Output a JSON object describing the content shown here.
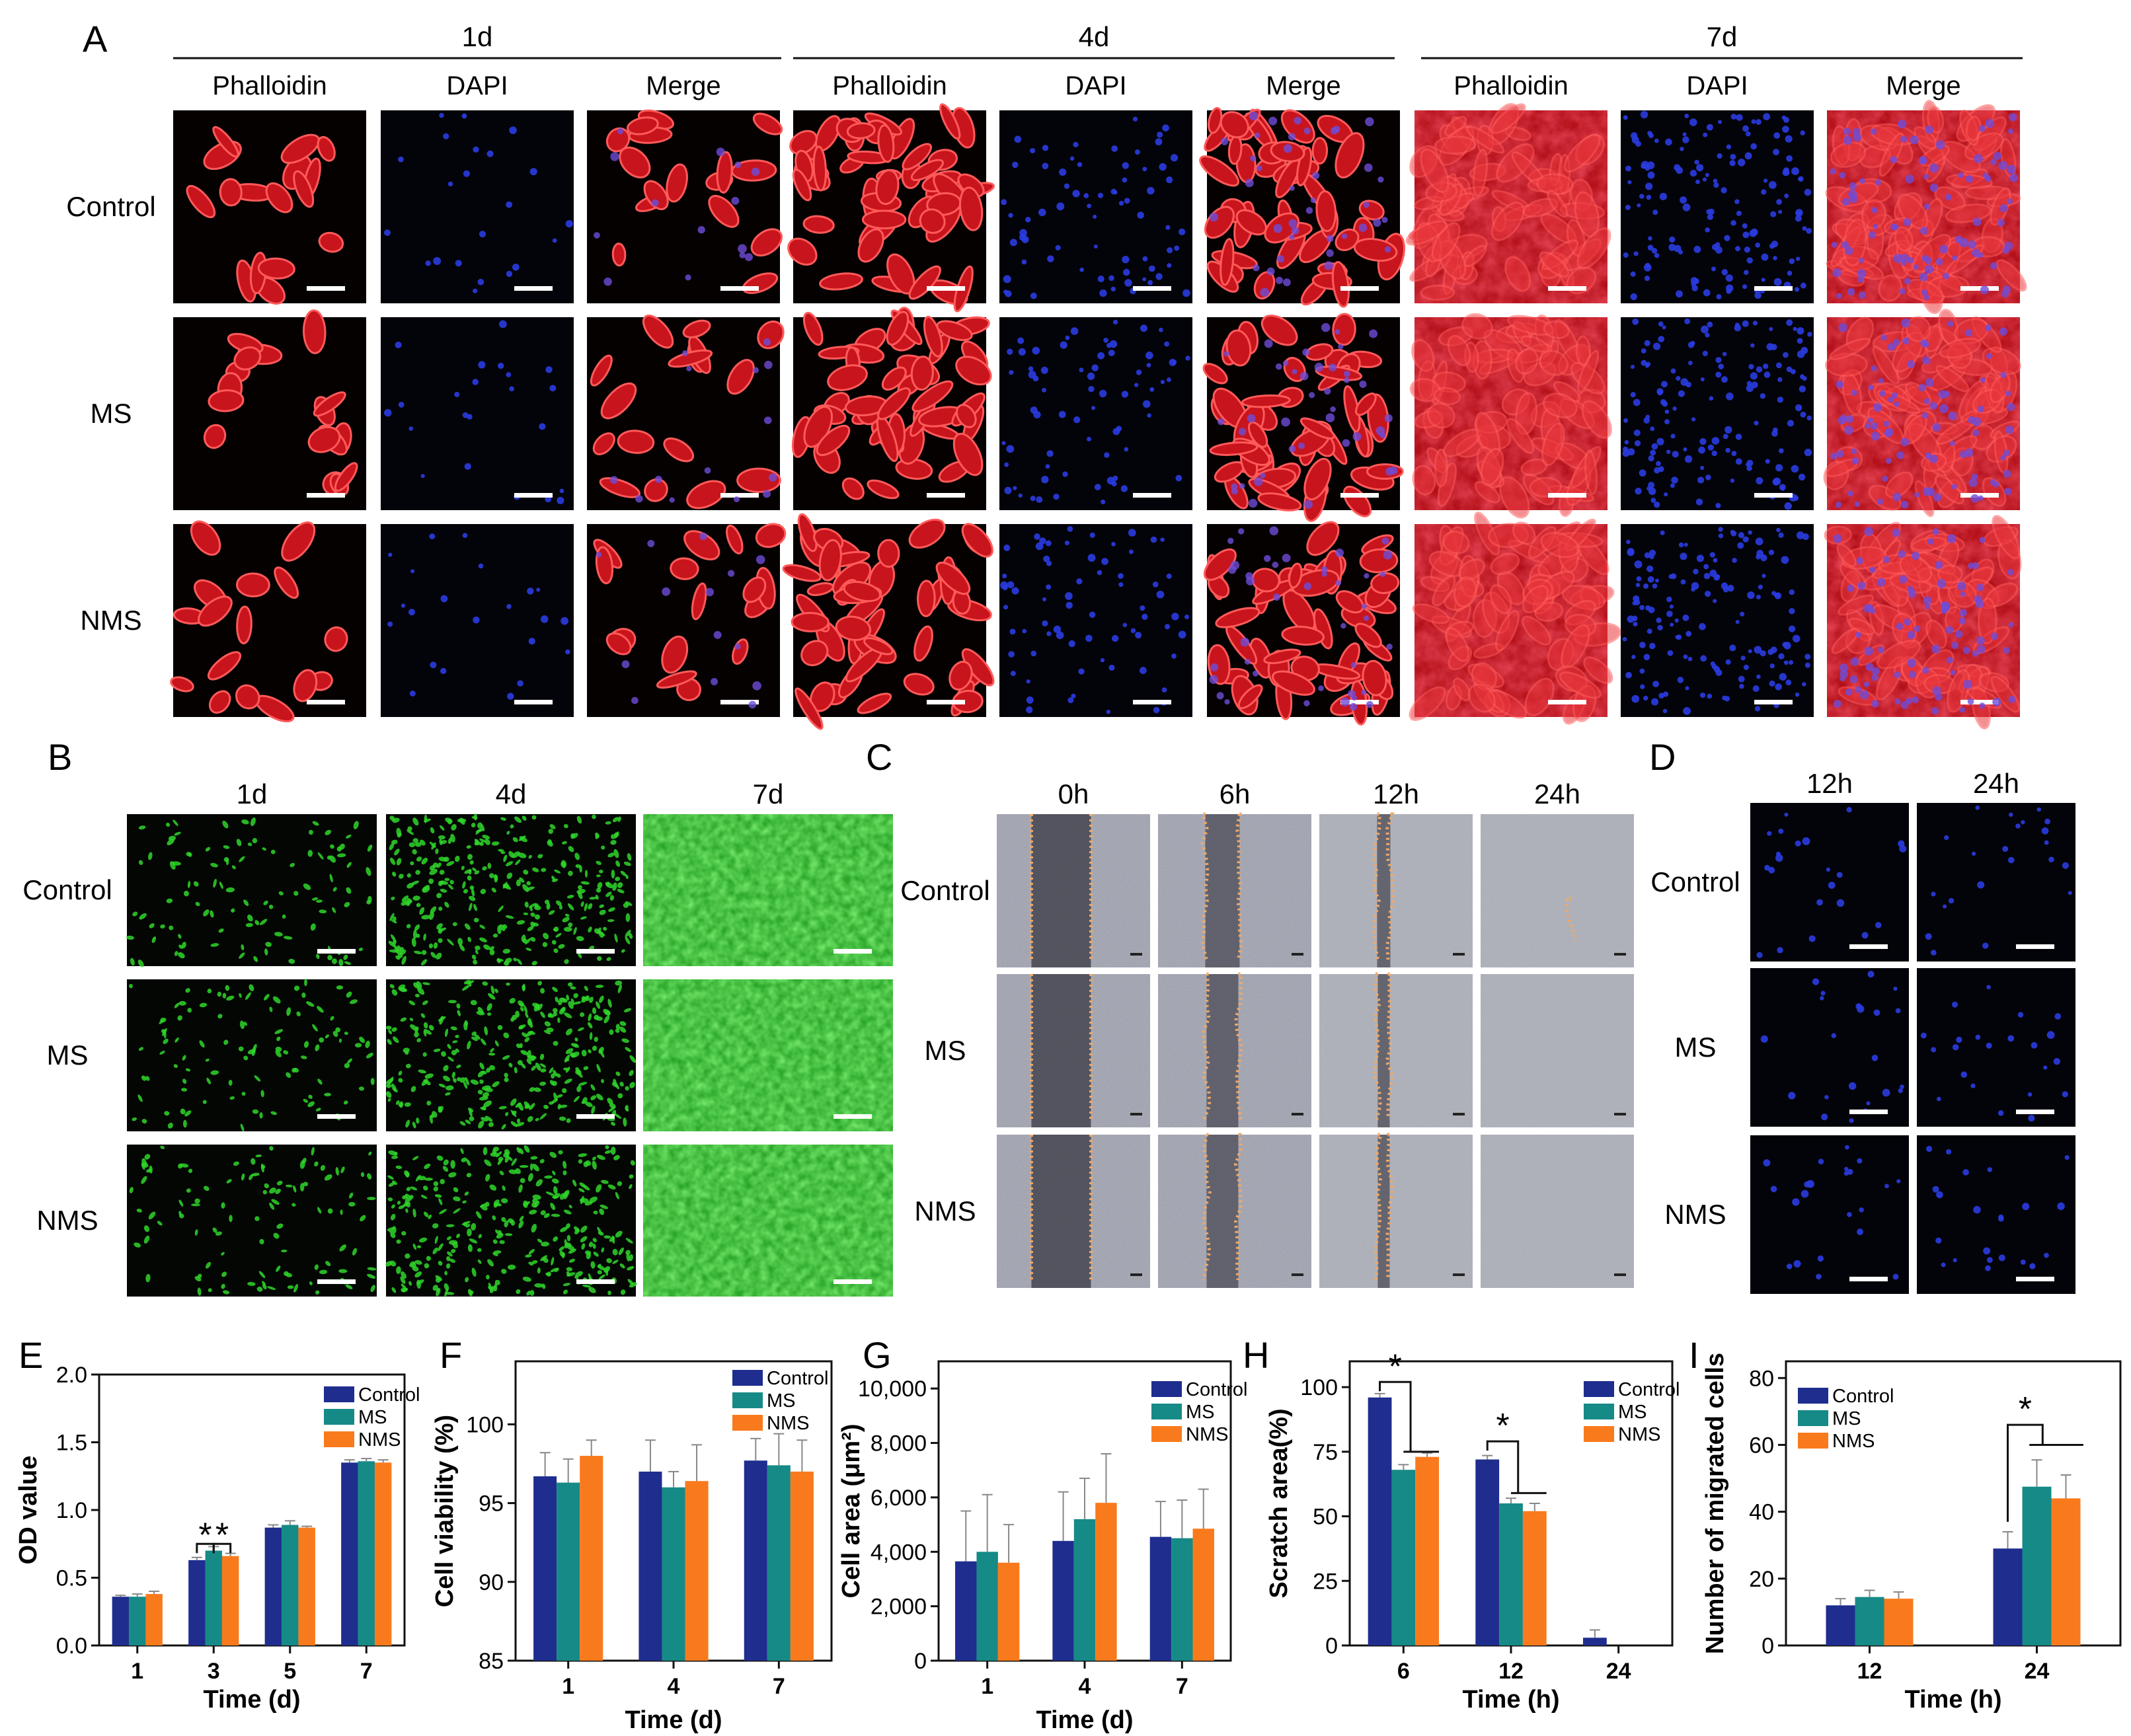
{
  "panel_a": {
    "letter": "A",
    "days": [
      "1d",
      "4d",
      "7d"
    ],
    "stains": [
      "Phalloidin",
      "DAPI",
      "Merge"
    ],
    "groups": [
      "Control",
      "MS",
      "NMS"
    ]
  },
  "panel_b": {
    "letter": "B",
    "days": [
      "1d",
      "4d",
      "7d"
    ],
    "groups": [
      "Control",
      "MS",
      "NMS"
    ]
  },
  "panel_c": {
    "letter": "C",
    "times": [
      "0h",
      "6h",
      "12h",
      "24h"
    ],
    "groups": [
      "Control",
      "MS",
      "NMS"
    ]
  },
  "panel_d": {
    "letter": "D",
    "times": [
      "12h",
      "24h"
    ],
    "groups": [
      "Control",
      "MS",
      "NMS"
    ]
  },
  "colors": {
    "Control": "#1f2d8f",
    "MS": "#168a86",
    "NMS": "#f97a1c",
    "phalloidin": "#d8141c",
    "dapi": "#2a3ce0",
    "live": "#2fd62a",
    "scratch_edge": "#f0a868"
  },
  "chart_data": [
    {
      "id": "E",
      "letter": "E",
      "type": "bar",
      "xlabel": "Time (d)",
      "ylabel": "OD value",
      "categories": [
        "1",
        "3",
        "5",
        "7"
      ],
      "ylim": [
        0,
        2.0
      ],
      "yticks": [
        "0.0",
        "0.5",
        "1.0",
        "1.5",
        "2.0"
      ],
      "legend_position": "top-right",
      "series": [
        {
          "name": "Control",
          "values": [
            0.36,
            0.63,
            0.87,
            1.35
          ],
          "errors": [
            0.01,
            0.02,
            0.02,
            0.02
          ]
        },
        {
          "name": "MS",
          "values": [
            0.36,
            0.7,
            0.89,
            1.36
          ],
          "errors": [
            0.02,
            0.03,
            0.03,
            0.02
          ]
        },
        {
          "name": "NMS",
          "values": [
            0.38,
            0.66,
            0.87,
            1.35
          ],
          "errors": [
            0.02,
            0.02,
            0.01,
            0.02
          ]
        }
      ],
      "annotations": [
        "*",
        "*"
      ]
    },
    {
      "id": "F",
      "letter": "F",
      "type": "bar",
      "xlabel": "Time (d)",
      "ylabel": "Cell viability (%)",
      "categories": [
        "1",
        "4",
        "7"
      ],
      "ylim": [
        85,
        104
      ],
      "yticks": [
        "85",
        "90",
        "95",
        "100"
      ],
      "legend_position": "top-right",
      "series": [
        {
          "name": "Control",
          "values": [
            96.7,
            97.0,
            97.7
          ],
          "errors": [
            1.5,
            2.0,
            1.4
          ]
        },
        {
          "name": "MS",
          "values": [
            96.3,
            96.0,
            97.4
          ],
          "errors": [
            1.5,
            1.0,
            2.0
          ]
        },
        {
          "name": "NMS",
          "values": [
            98.0,
            96.4,
            97.0
          ],
          "errors": [
            1.0,
            2.3,
            2.0
          ]
        }
      ]
    },
    {
      "id": "G",
      "letter": "G",
      "type": "bar",
      "xlabel": "Time (d)",
      "ylabel": "Cell area (μm²)",
      "categories": [
        "1",
        "4",
        "7"
      ],
      "ylim": [
        0,
        11000
      ],
      "yticks": [
        "0",
        "2,000",
        "4,000",
        "6,000",
        "8,000",
        "10,000"
      ],
      "legend_position": "top-right",
      "series": [
        {
          "name": "Control",
          "values": [
            3650,
            4400,
            4550
          ],
          "errors": [
            1850,
            1800,
            1300
          ]
        },
        {
          "name": "MS",
          "values": [
            4000,
            5200,
            4500
          ],
          "errors": [
            2100,
            1500,
            1400
          ]
        },
        {
          "name": "NMS",
          "values": [
            3600,
            5800,
            4850
          ],
          "errors": [
            1400,
            1800,
            1450
          ]
        }
      ]
    },
    {
      "id": "H",
      "letter": "H",
      "type": "bar",
      "xlabel": "Time (h)",
      "ylabel": "Scratch area(%)",
      "categories": [
        "6",
        "12",
        "24"
      ],
      "ylim": [
        0,
        110
      ],
      "yticks": [
        "0",
        "25",
        "50",
        "75",
        "100"
      ],
      "legend_position": "top-right",
      "series": [
        {
          "name": "Control",
          "values": [
            96,
            72,
            3
          ],
          "errors": [
            1.5,
            1.5,
            3
          ]
        },
        {
          "name": "MS",
          "values": [
            68,
            55,
            0
          ],
          "errors": [
            2,
            2,
            0
          ]
        },
        {
          "name": "NMS",
          "values": [
            73,
            52,
            0
          ],
          "errors": [
            1.5,
            3,
            0
          ]
        }
      ],
      "annotations": [
        "*",
        "*"
      ]
    },
    {
      "id": "I",
      "letter": "I",
      "type": "bar",
      "xlabel": "Time (h)",
      "ylabel": "Number of migrated cells",
      "categories": [
        "12",
        "24"
      ],
      "ylim": [
        0,
        85
      ],
      "yticks": [
        "0",
        "20",
        "40",
        "60",
        "80"
      ],
      "legend_position": "top-left",
      "series": [
        {
          "name": "Control",
          "values": [
            12,
            29
          ],
          "errors": [
            2,
            5
          ]
        },
        {
          "name": "MS",
          "values": [
            14.5,
            47.5
          ],
          "errors": [
            2,
            8
          ]
        },
        {
          "name": "NMS",
          "values": [
            14,
            44
          ],
          "errors": [
            2,
            7
          ]
        }
      ],
      "annotations": [
        "*"
      ]
    }
  ]
}
